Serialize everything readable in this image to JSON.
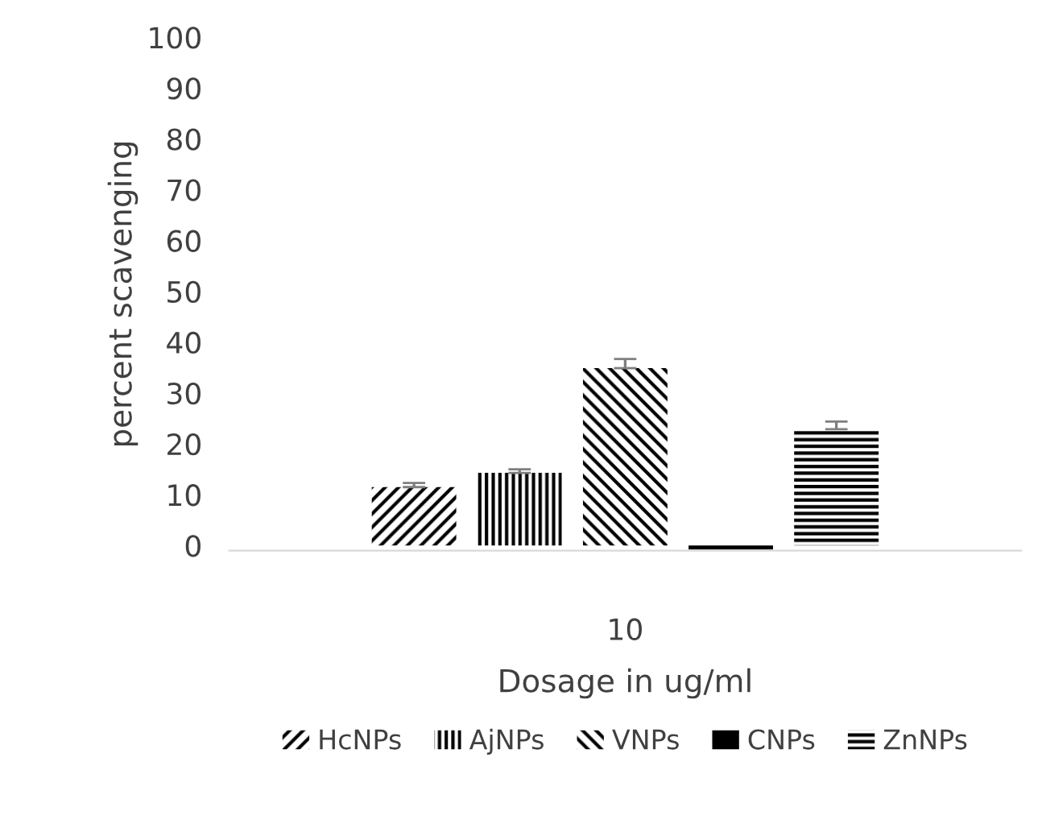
{
  "chart_data": {
    "type": "bar",
    "xlabel": "Dosage in ug/ml",
    "ylabel": "percent scavenging",
    "categories": [
      "10"
    ],
    "series": [
      {
        "name": "HcNPs",
        "color": "#000000",
        "values": [
          11.5
        ],
        "errors": [
          0.8
        ]
      },
      {
        "name": "AjNPs",
        "color": "#000000",
        "values": [
          14.3
        ],
        "errors": [
          0.7
        ]
      },
      {
        "name": "VNPs",
        "color": "#000000",
        "values": [
          34.9
        ],
        "errors": [
          1.8
        ]
      },
      {
        "name": "CNPs",
        "color": "#000000",
        "values": [
          -0.8
        ],
        "errors": [
          null
        ]
      },
      {
        "name": "ZnNPs",
        "color": "#000000",
        "values": [
          22.9
        ],
        "errors": [
          1.5
        ]
      }
    ],
    "ylim": [
      -1,
      100
    ],
    "yticks": [
      0,
      10,
      20,
      30,
      40,
      50,
      60,
      70,
      80,
      90,
      100
    ],
    "grid": false,
    "legend": "bottom"
  }
}
